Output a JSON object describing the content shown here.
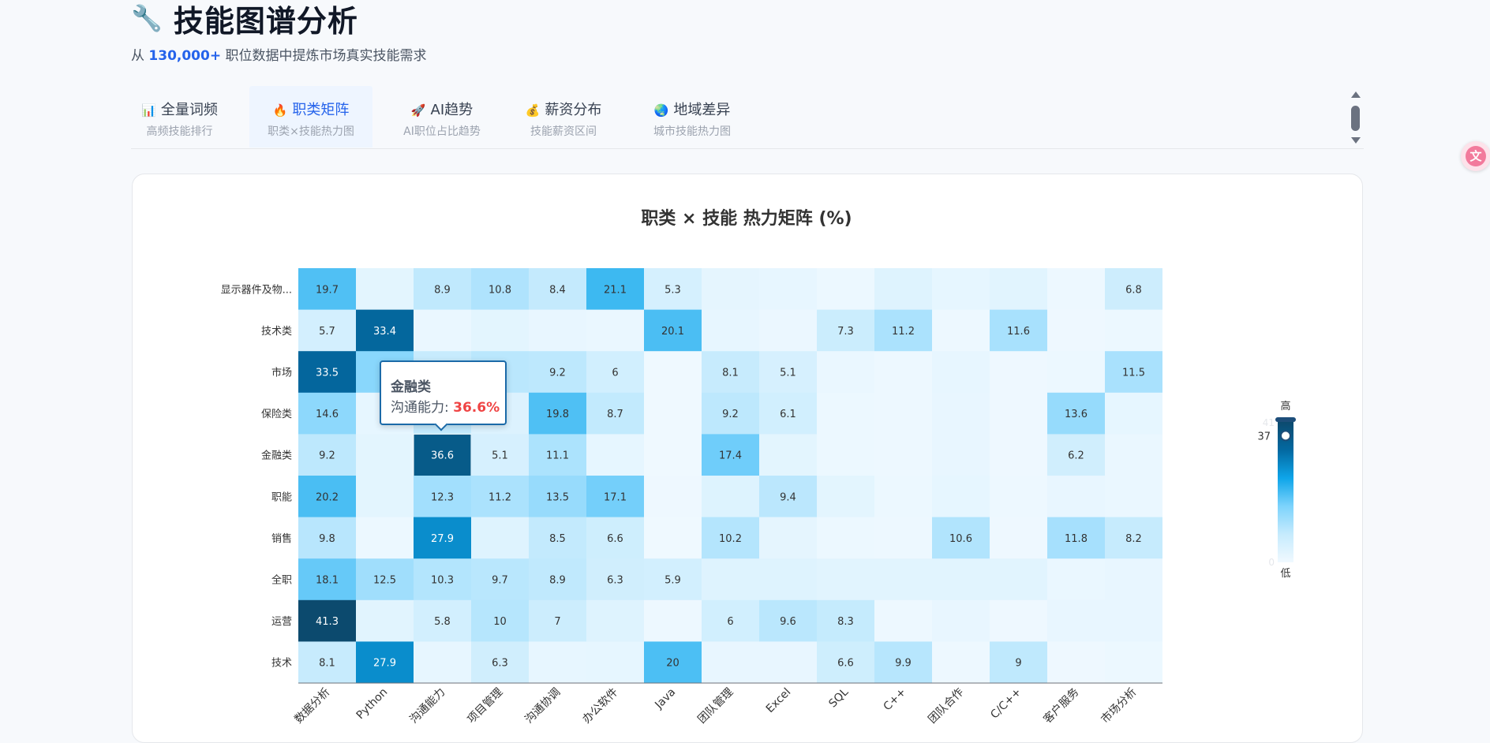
{
  "header": {
    "icon": "wrench-icon",
    "title": "技能图谱分析",
    "subtitle_prefix": "从",
    "subtitle_highlight": "130,000+",
    "subtitle_suffix": "职位数据中提炼市场真实技能需求"
  },
  "tabs": [
    {
      "icon": "📊",
      "label": "全量词频",
      "sub": "高频技能排行",
      "active": false
    },
    {
      "icon": "🔥",
      "label": "职类矩阵",
      "sub": "职类×技能热力图",
      "active": true
    },
    {
      "icon": "🚀",
      "label": "AI趋势",
      "sub": "AI职位占比趋势",
      "active": false
    },
    {
      "icon": "💰",
      "label": "薪资分布",
      "sub": "技能薪资区间",
      "active": false
    },
    {
      "icon": "🌏",
      "label": "地域差异",
      "sub": "城市技能热力图",
      "active": false
    }
  ],
  "fab_icon": "translate-icon",
  "chart_data": {
    "type": "heatmap",
    "title": "职类 × 技能 热力矩阵 (%)",
    "x_categories": [
      "数据分析",
      "Python",
      "沟通能力",
      "项目管理",
      "沟通协调",
      "办公软件",
      "Java",
      "团队管理",
      "Excel",
      "SQL",
      "C++",
      "团队合作",
      "C/C++",
      "客户服务",
      "市场分析"
    ],
    "y_categories": [
      "显示器件及物...",
      "技术类",
      "市场",
      "保险类",
      "金融类",
      "职能",
      "销售",
      "全职",
      "运营",
      "技术"
    ],
    "values": [
      [
        19.7,
        2.5,
        8.9,
        10.8,
        8.4,
        21.1,
        5.3,
        2.2,
        1.8,
        0.8,
        3.5,
        2.0,
        3.0,
        0.6,
        6.8
      ],
      [
        5.7,
        33.4,
        1.2,
        2.5,
        1.5,
        1.2,
        20.1,
        1.8,
        1.0,
        7.3,
        11.2,
        0.5,
        11.6,
        0.3,
        0.8
      ],
      [
        33.5,
        15.0,
        8.0,
        9.5,
        9.2,
        6.0,
        0.2,
        8.1,
        5.1,
        1.2,
        0.6,
        1.8,
        0.3,
        0.8,
        11.5
      ],
      [
        14.6,
        2.0,
        8.5,
        4.0,
        19.8,
        8.7,
        0.2,
        9.2,
        6.1,
        0.8,
        0.6,
        1.5,
        0.3,
        13.6,
        2.0
      ],
      [
        9.2,
        2.5,
        36.6,
        5.1,
        11.1,
        2.0,
        0.2,
        17.4,
        2.5,
        0.8,
        0.6,
        1.5,
        0.3,
        6.2,
        1.2
      ],
      [
        20.2,
        2.5,
        12.3,
        11.2,
        13.5,
        17.1,
        0.3,
        3.8,
        9.4,
        2.5,
        0.8,
        2.0,
        0.5,
        1.5,
        1.2
      ],
      [
        9.8,
        0.8,
        27.9,
        3.5,
        8.5,
        6.6,
        0.2,
        10.2,
        2.2,
        0.8,
        0.6,
        10.6,
        0.3,
        11.8,
        8.2
      ],
      [
        18.1,
        12.5,
        10.3,
        9.7,
        8.9,
        6.3,
        5.9,
        3.5,
        3.5,
        3.0,
        3.0,
        3.0,
        3.0,
        1.2,
        1.5
      ],
      [
        41.3,
        3.0,
        5.8,
        10.0,
        7.0,
        3.5,
        0.6,
        6.0,
        9.6,
        8.3,
        0.5,
        1.5,
        0.3,
        1.5,
        1.5
      ],
      [
        8.1,
        27.9,
        1.8,
        6.3,
        1.8,
        2.0,
        20.0,
        1.5,
        1.5,
        6.6,
        9.9,
        0.5,
        9.0,
        0.3,
        0.8
      ]
    ],
    "labeled_cells": [
      [
        true,
        false,
        true,
        true,
        true,
        true,
        true,
        false,
        false,
        false,
        false,
        false,
        false,
        false,
        true
      ],
      [
        true,
        true,
        false,
        false,
        false,
        false,
        true,
        false,
        false,
        true,
        true,
        false,
        true,
        false,
        false
      ],
      [
        true,
        false,
        false,
        false,
        true,
        true,
        false,
        true,
        true,
        false,
        false,
        false,
        false,
        false,
        true
      ],
      [
        true,
        false,
        false,
        false,
        true,
        true,
        false,
        true,
        true,
        false,
        false,
        false,
        false,
        true,
        false
      ],
      [
        true,
        false,
        true,
        true,
        true,
        false,
        false,
        true,
        false,
        false,
        false,
        false,
        false,
        true,
        false
      ],
      [
        true,
        false,
        true,
        true,
        true,
        true,
        false,
        false,
        true,
        false,
        false,
        false,
        false,
        false,
        false
      ],
      [
        true,
        false,
        true,
        false,
        true,
        true,
        false,
        true,
        false,
        false,
        false,
        true,
        false,
        true,
        true
      ],
      [
        true,
        true,
        true,
        true,
        true,
        true,
        true,
        false,
        false,
        false,
        false,
        false,
        false,
        false,
        false
      ],
      [
        true,
        false,
        true,
        true,
        true,
        false,
        false,
        true,
        true,
        true,
        false,
        false,
        false,
        false,
        false
      ],
      [
        true,
        true,
        false,
        true,
        false,
        false,
        true,
        false,
        false,
        true,
        true,
        false,
        true,
        false,
        false
      ]
    ],
    "value_range": [
      0,
      41
    ],
    "color_scale": [
      "#f0f9ff",
      "#c6ebfd",
      "#7dd3fc",
      "#0ea5e9",
      "#0369a1",
      "#0c4a6e"
    ],
    "visual_map": {
      "label_high": "高",
      "label_low": "低",
      "max": "41",
      "min": "0",
      "handle_value": "37"
    },
    "highlight": {
      "row": 4,
      "col": 2
    },
    "tooltip": {
      "title": "金融类",
      "label": "沟通能力: ",
      "value": "36.6%"
    }
  }
}
